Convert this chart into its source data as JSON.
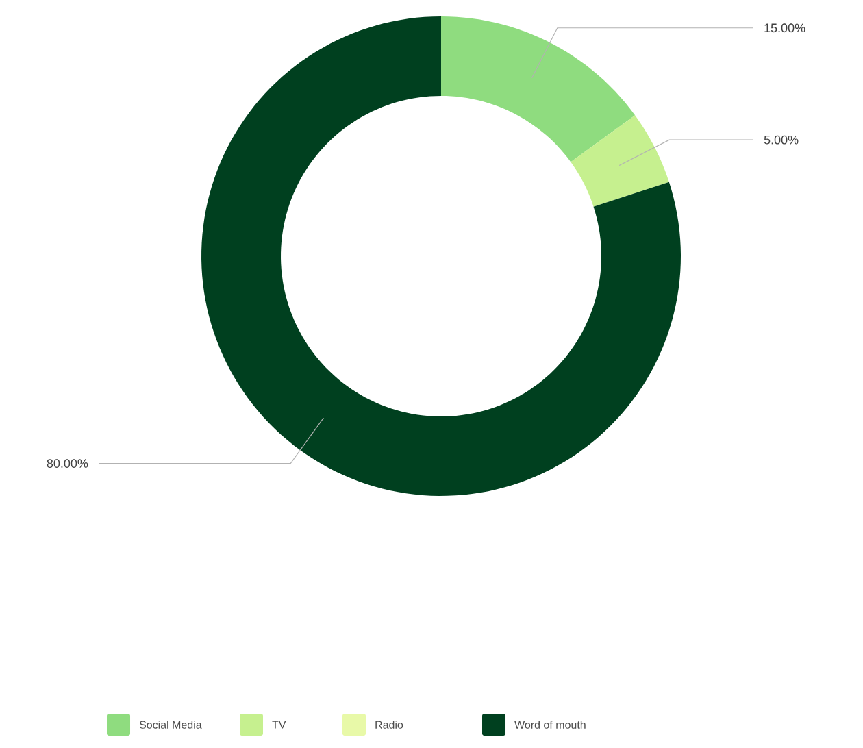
{
  "chart_data": {
    "type": "donut",
    "categories": [
      "Social Media",
      "TV",
      "Radio",
      "Word of mouth"
    ],
    "values": [
      15,
      5,
      0,
      80
    ],
    "colors": [
      "#8fdc7f",
      "#c6f08f",
      "#e8f9a8",
      "#00401f"
    ],
    "value_labels": [
      "15.00%",
      "5.00%",
      null,
      "80.00%"
    ],
    "legend": "bottom"
  }
}
